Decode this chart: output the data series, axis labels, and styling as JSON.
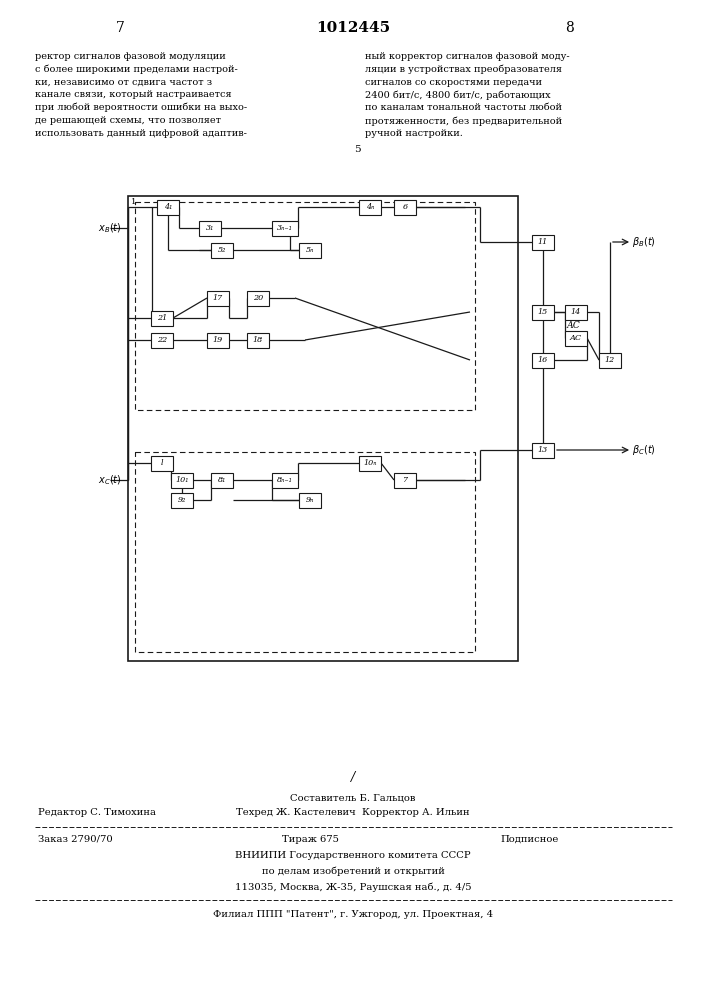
{
  "page_num_left": "7",
  "page_num_center": "1012445",
  "page_num_right": "8",
  "text_left": "ректор сигналов фазовой модуляции\nс более широкими пределами настрой-\nки, независимо от сдвига частот з\nканале связи, который настраивается\nпри любой вероятности ошибки на выхо-\nде решающей схемы, что позволяет\nиспользовать данный цифровой адаптив-",
  "text_right": "ный корректор сигналов фазовой моду-\nляции в устройствах преобразователя\nсигналов со скоростями передачи\n2400 бит/с, 4800 бит/с, работающих\nпо каналам тональной частоты любой\nпротяженности, без предварительной\nручной настройки.",
  "text_5": "5",
  "footer_editor": "Редактор С. Тимохина",
  "footer_composer": "Составитель Б. Гальцов",
  "footer_techred": "Техред Ж. Кастелевич  Корректор А. Ильин",
  "footer_order": "Заказ 2790/70",
  "footer_tirazh": "Тираж 675",
  "footer_podpisnoe": "Подписное",
  "footer_vnipi": "ВНИИПИ Государственного комитета СССР",
  "footer_po": "по делам изобретений и открытий",
  "footer_address": "113035, Москва, Ж-35, Раушская наб., д. 4/5",
  "footer_filial": "Филиал ППП \"Патент\", г. Ужгород, ул. Проектная, 4",
  "bg_color": "#ffffff",
  "box_color": "#1a1a1a",
  "line_color": "#1a1a1a",
  "text_color": "#000000"
}
